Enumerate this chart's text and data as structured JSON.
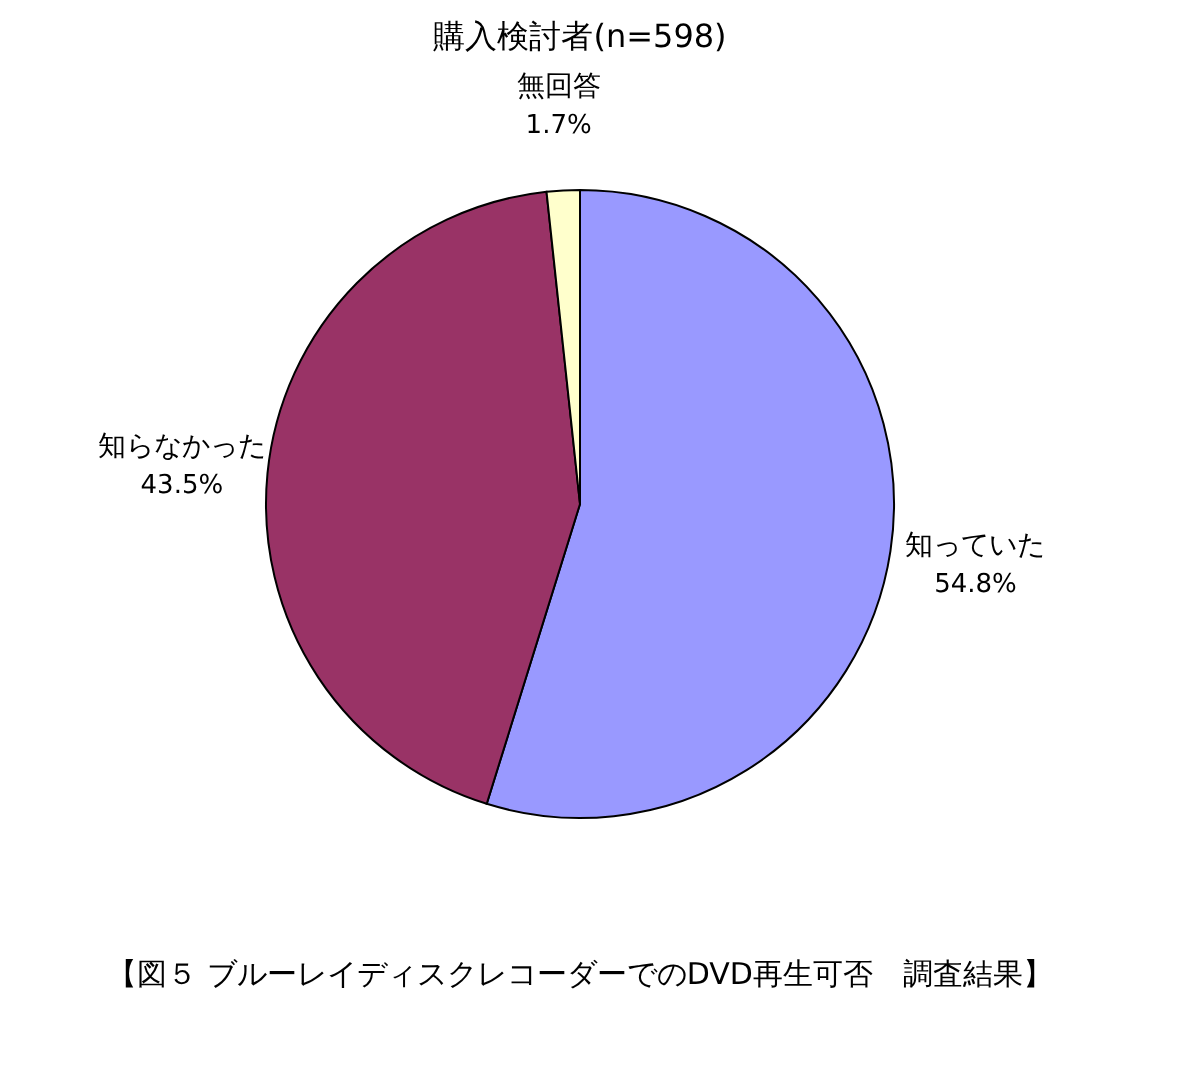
{
  "chart_data": {
    "type": "pie",
    "title": "購入検討者(n=598)",
    "categories": [
      "知っていた",
      "知らなかった",
      "無回答"
    ],
    "values": [
      54.8,
      43.5,
      1.7
    ],
    "colors": [
      "#9999ff",
      "#993366",
      "#ffffcc"
    ],
    "value_labels": [
      "54.8%",
      "43.5%",
      "1.7%"
    ],
    "annotations": [
      "【図５ ブルーレイディスクレコーダーでのDVD再生可否　調査結果】"
    ],
    "legend": false
  }
}
